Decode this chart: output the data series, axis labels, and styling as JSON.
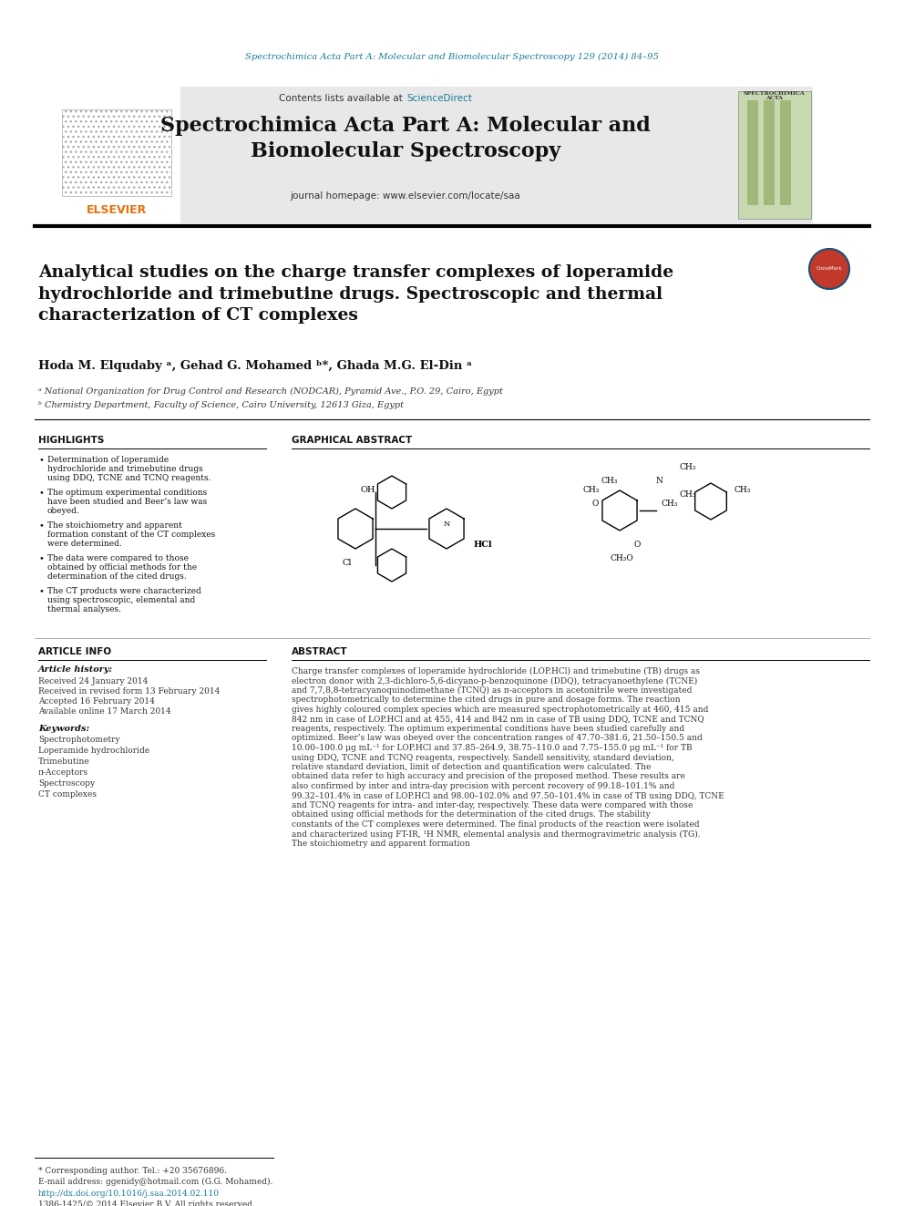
{
  "page_bg": "#ffffff",
  "top_url_text": "Spectrochimica Acta Part A: Molecular and Biomolecular Spectroscopy 129 (2014) 84–95",
  "top_url_color": "#1a7a9a",
  "header_bg": "#e8e8e8",
  "header_contents_text": "Contents lists available at ",
  "header_sciencedirect_text": "ScienceDirect",
  "header_sciencedirect_color": "#1a7a9a",
  "header_journal_title": "Spectrochimica Acta Part A: Molecular and\nBiomolecular Spectroscopy",
  "header_journal_homepage": "journal homepage: www.elsevier.com/locate/saa",
  "article_title": "Analytical studies on the charge transfer complexes of loperamide\nhydrochloride and trimebutine drugs. Spectroscopic and thermal\ncharacterization of CT complexes",
  "authors": "Hoda M. Elqudaby ᵃ, Gehad G. Mohamed ᵇ*, Ghada M.G. El-Din ᵃ",
  "affil_a": "ᵃ National Organization for Drug Control and Research (NODCAR), Pyramid Ave., P.O. 29, Cairo, Egypt",
  "affil_b": "ᵇ Chemistry Department, Faculty of Science, Cairo University, 12613 Giza, Egypt",
  "highlights_title": "HIGHLIGHTS",
  "highlights": [
    "Determination of loperamide hydrochloride and trimebutine drugs using DDQ, TCNE and TCNQ reagents.",
    "The optimum experimental conditions have been studied and Beer’s law was obeyed.",
    "The stoichiometry and apparent formation constant of the CT complexes were determined.",
    "The data were compared to those obtained by official methods for the determination of the cited drugs.",
    "The CT products were characterized using spectroscopic, elemental and thermal analyses."
  ],
  "graphical_abstract_title": "GRAPHICAL ABSTRACT",
  "article_info_title": "ARTICLE INFO",
  "article_history_title": "Article history:",
  "received": "Received 24 January 2014",
  "received_revised": "Received in revised form 13 February 2014",
  "accepted": "Accepted 16 February 2014",
  "available": "Available online 17 March 2014",
  "keywords_title": "Keywords:",
  "keywords": "Spectrophotometry\nLoperamide hydrochloride\nTrimebutine\nπ-Acceptors\nSpectroscopy\nCT complexes",
  "abstract_title": "ABSTRACT",
  "abstract_text": "Charge transfer complexes of loperamide hydrochloride (LOP.HCl) and trimebutine (TB) drugs as electron donor with 2,3-dichloro-5,6-dicyano-p-benzoquinone (DDQ), tetracyanoethylene (TCNE) and 7,7,8,8-tetracyanoquinodimethane (TCNQ) as π-acceptors in acetonitrile were investigated spectrophotometrically to determine the cited drugs in pure and dosage forms. The reaction gives highly coloured complex species which are measured spectrophotometrically at 460, 415 and 842 nm in case of LOP.HCl and at 455, 414 and 842 nm in case of TB using DDQ, TCNE and TCNQ reagents, respectively. The optimum experimental conditions have been studied carefully and optimized. Beer’s law was obeyed over the concentration ranges of 47.70–381.6, 21.50–150.5 and 10.00–100.0 μg mL⁻¹ for LOP.HCl and 37.85–264.9, 38.75–110.0 and 7.75–155.0 μg mL⁻¹ for TB using DDQ, TCNE and TCNQ reagents, respectively. Sandell sensitivity, standard deviation, relative standard deviation, limit of detection and quantification were calculated. The obtained data refer to high accuracy and precision of the proposed method. These results are also confirmed by inter and intra-day precision with percent recovery of 99.18–101.1% and 99.32–101.4% in case of LOP.HCl and 98.00–102.0% and 97.50–101.4% in case of TB using DDQ, TCNE and TCNQ reagents for intra- and inter-day, respectively. These data were compared with those obtained using official methods for the determination of the cited drugs. The stability constants of the CT complexes were determined. The final products of the reaction were isolated and characterized using FT-IR, ¹H NMR, elemental analysis and thermogravimetric analysis (TG). The stoichiometry and apparent formation",
  "footnote_star": "* Corresponding author. Tel.: +20 35676896.",
  "footnote_email": "E-mail address: ggenidy@hotmail.com (G.G. Mohamed).",
  "footnote_doi": "http://dx.doi.org/10.1016/j.saa.2014.02.110",
  "footnote_issn": "1386-1425/© 2014 Elsevier B.V. All rights reserved.",
  "divider_color": "#000000",
  "thin_divider_color": "#888888",
  "elsevier_color": "#e8700a",
  "highlights_line_color": "#333333",
  "article_info_line_color": "#333333",
  "graphical_line_color": "#333333"
}
